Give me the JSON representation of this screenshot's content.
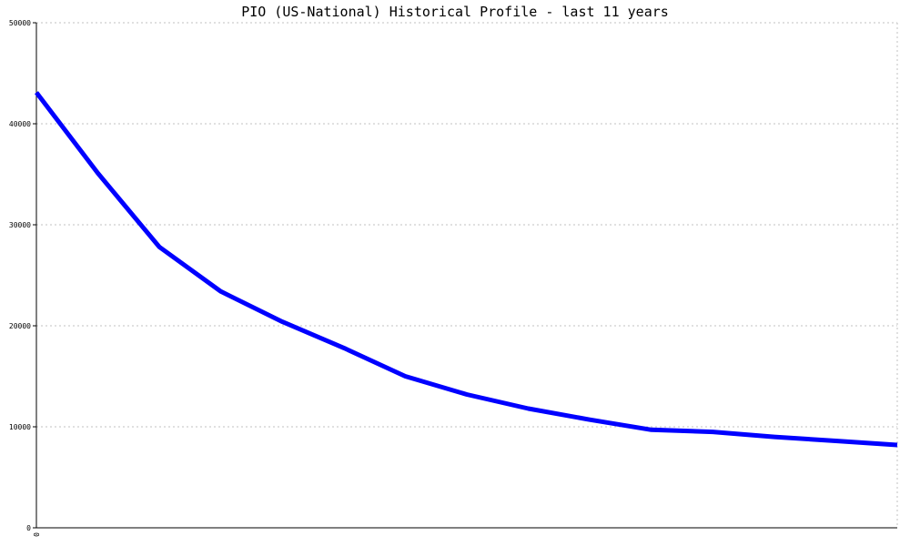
{
  "chart_data": {
    "type": "line",
    "title": "PIO (US-National) Historical Profile - last 11 years",
    "xlabel": "",
    "ylabel": "",
    "ylim": [
      0,
      50000
    ],
    "y_ticks": [
      "0",
      "10000",
      "20000",
      "30000",
      "40000",
      "50000"
    ],
    "x_ticks": [
      "0"
    ],
    "grid": true,
    "colors": {
      "line": "#0000ff",
      "grid": "#c0c0c0",
      "axis": "#000000"
    },
    "series": [
      {
        "values": [
          43100,
          35100,
          27800,
          23400,
          20400,
          17800,
          15000,
          13200,
          11800,
          10700,
          9700,
          9500,
          9000,
          8600,
          8200
        ]
      }
    ]
  }
}
